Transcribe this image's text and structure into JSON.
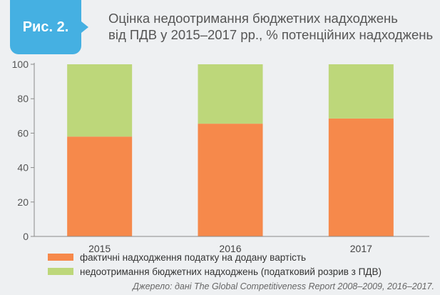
{
  "header": {
    "figure_label": "Рис. 2.",
    "title_lines": [
      "Оцінка недоотримання бюджетних надходжень",
      "від ПДВ у 2015–2017 рр., % потенційних надходжень"
    ]
  },
  "source": "Джерело: дані The Global Competitiveness Report 2008–2009, 2016–2017.",
  "colors": {
    "badge": "#45b0e2",
    "actual": "#f6894b",
    "gap": "#bdd77a"
  },
  "chart_data": {
    "type": "bar",
    "stacked": true,
    "categories": [
      "2015",
      "2016",
      "2017"
    ],
    "series": [
      {
        "name": "фактичні надходження податку на додану вартість",
        "values": [
          58,
          65.5,
          68.5
        ],
        "color": "#f6894b"
      },
      {
        "name": "недоотримання бюджетних надходжень (податковий розрив з ПДВ)",
        "values": [
          42,
          34.5,
          31.5
        ],
        "color": "#bdd77a"
      }
    ],
    "ylim": [
      0,
      100
    ],
    "yticks": [
      0,
      20,
      40,
      60,
      80,
      100
    ],
    "grid": false,
    "legend_position": "bottom"
  }
}
